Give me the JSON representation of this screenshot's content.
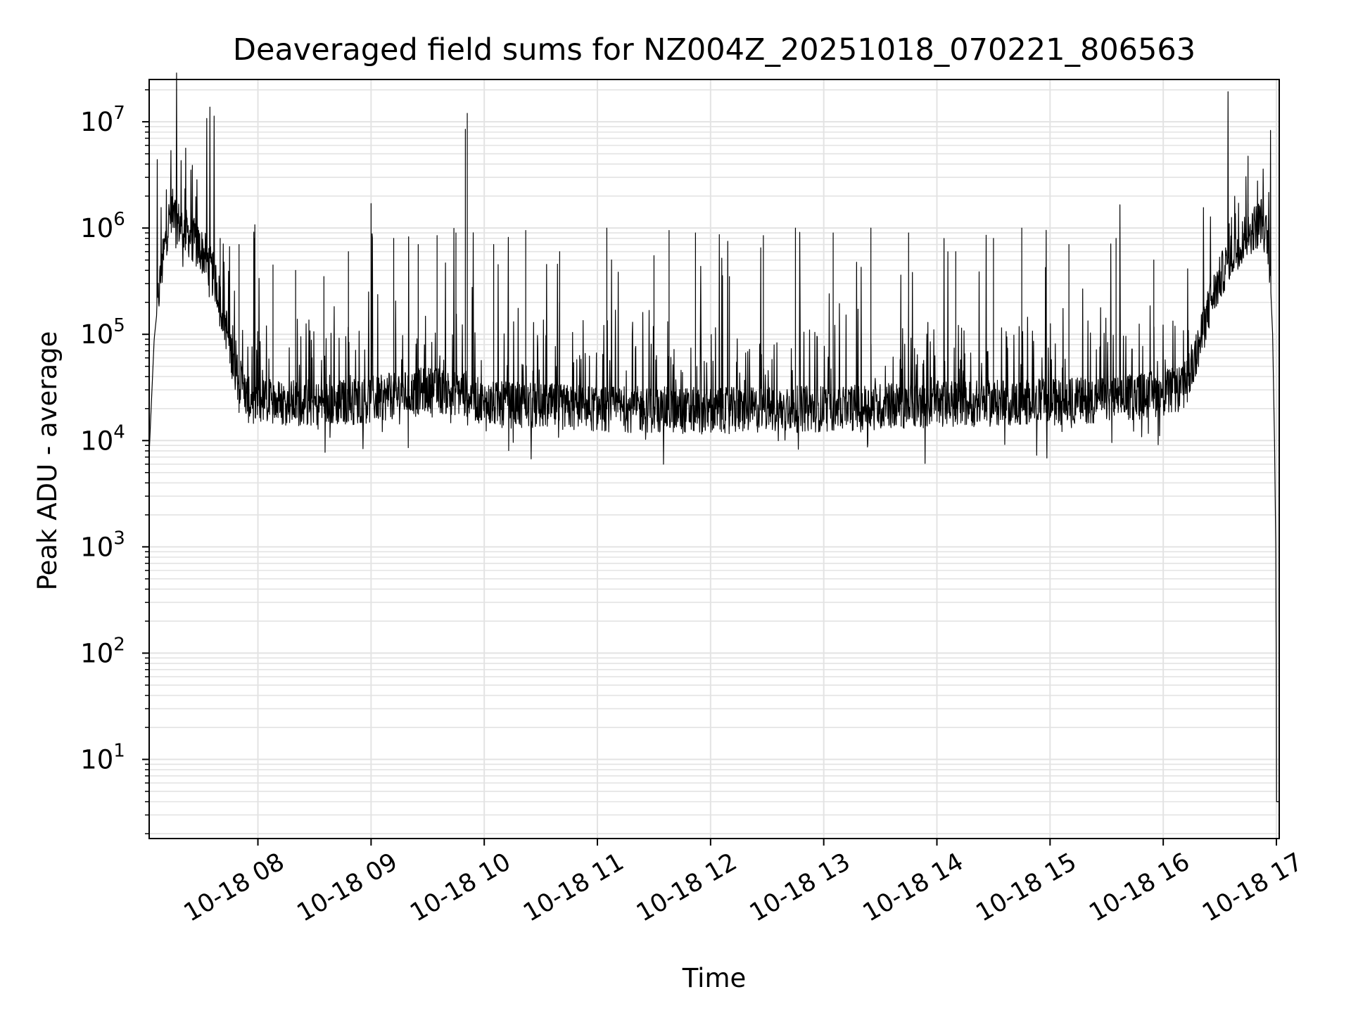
{
  "chart_data": {
    "type": "line",
    "title": "Deaveraged field sums for NZ004Z_20251018_070221_806563",
    "xlabel": "Time",
    "ylabel": "Peak ADU - average",
    "yscale": "log",
    "ylim": [
      1.8,
      25000000
    ],
    "xlim": [
      "2025-10-18T07:02:21",
      "2025-10-18T17:01:30"
    ],
    "grid": true,
    "line_color": "#000000",
    "grid_color": "#e3e3e3",
    "xticks": [
      {
        "t": "2025-10-18T08:00",
        "label": "10-18 08"
      },
      {
        "t": "2025-10-18T09:00",
        "label": "10-18 09"
      },
      {
        "t": "2025-10-18T10:00",
        "label": "10-18 10"
      },
      {
        "t": "2025-10-18T11:00",
        "label": "10-18 11"
      },
      {
        "t": "2025-10-18T12:00",
        "label": "10-18 12"
      },
      {
        "t": "2025-10-18T13:00",
        "label": "10-18 13"
      },
      {
        "t": "2025-10-18T14:00",
        "label": "10-18 14"
      },
      {
        "t": "2025-10-18T15:00",
        "label": "10-18 15"
      },
      {
        "t": "2025-10-18T16:00",
        "label": "10-18 16"
      },
      {
        "t": "2025-10-18T17:00",
        "label": "10-18 17"
      }
    ],
    "yticks": [
      {
        "value": 10,
        "base": "10",
        "exp": "1"
      },
      {
        "value": 100,
        "base": "10",
        "exp": "2"
      },
      {
        "value": 1000,
        "base": "10",
        "exp": "3"
      },
      {
        "value": 10000,
        "base": "10",
        "exp": "4"
      },
      {
        "value": 100000,
        "base": "10",
        "exp": "5"
      },
      {
        "value": 1000000,
        "base": "10",
        "exp": "6"
      },
      {
        "value": 10000000,
        "base": "10",
        "exp": "7"
      }
    ],
    "series": [
      {
        "baseline": [
          [
            "2025-10-18T07:02:21",
            7500
          ],
          [
            "2025-10-18T07:05",
            90000
          ],
          [
            "2025-10-18T07:08",
            300000
          ],
          [
            "2025-10-18T07:12",
            1000000
          ],
          [
            "2025-10-18T07:14",
            1500000
          ],
          [
            "2025-10-18T07:18",
            1100000
          ],
          [
            "2025-10-18T07:25",
            800000
          ],
          [
            "2025-10-18T07:32",
            550000
          ],
          [
            "2025-10-18T07:38",
            300000
          ],
          [
            "2025-10-18T07:43",
            120000
          ],
          [
            "2025-10-18T07:48",
            45000
          ],
          [
            "2025-10-18T07:55",
            24000
          ],
          [
            "2025-10-18T08:30",
            22000
          ],
          [
            "2025-10-18T09:00",
            24000
          ],
          [
            "2025-10-18T09:30",
            30000
          ],
          [
            "2025-10-18T09:50",
            28000
          ],
          [
            "2025-10-18T10:00",
            22000
          ],
          [
            "2025-10-18T11:00",
            20000
          ],
          [
            "2025-10-18T12:00",
            19000
          ],
          [
            "2025-10-18T13:00",
            20000
          ],
          [
            "2025-10-18T14:00",
            22000
          ],
          [
            "2025-10-18T15:00",
            23000
          ],
          [
            "2025-10-18T15:40",
            25000
          ],
          [
            "2025-10-18T16:10",
            30000
          ],
          [
            "2025-10-18T16:15",
            45000
          ],
          [
            "2025-10-18T16:20",
            90000
          ],
          [
            "2025-10-18T16:25",
            200000
          ],
          [
            "2025-10-18T16:32",
            400000
          ],
          [
            "2025-10-18T16:40",
            700000
          ],
          [
            "2025-10-18T16:48",
            1000000
          ],
          [
            "2025-10-18T16:52",
            1200000
          ],
          [
            "2025-10-18T16:56",
            700000
          ],
          [
            "2025-10-18T16:58",
            100000
          ],
          [
            "2025-10-18T16:59",
            10000
          ],
          [
            "2025-10-18T16:59:40",
            1000
          ],
          [
            "2025-10-18T16:59:55",
            60
          ],
          [
            "2025-10-18T17:00:05",
            4
          ],
          [
            "2025-10-18T17:01:30",
            4
          ]
        ],
        "spikes": [
          [
            "2025-10-18T07:10",
            500000
          ],
          [
            "2025-10-18T07:40",
            800000
          ],
          [
            "2025-10-18T07:50",
            700000
          ],
          [
            "2025-10-18T07:58",
            800000
          ],
          [
            "2025-10-18T08:08",
            450000
          ],
          [
            "2025-10-18T08:20",
            400000
          ],
          [
            "2025-10-18T08:35",
            350000
          ],
          [
            "2025-10-18T08:48",
            600000
          ],
          [
            "2025-10-18T09:00",
            1700000
          ],
          [
            "2025-10-18T09:12",
            800000
          ],
          [
            "2025-10-18T09:25",
            700000
          ],
          [
            "2025-10-18T09:35",
            850000
          ],
          [
            "2025-10-18T09:45",
            900000
          ],
          [
            "2025-10-18T09:50",
            8500000
          ],
          [
            "2025-10-18T09:51",
            12000000
          ],
          [
            "2025-10-18T10:05",
            700000
          ],
          [
            "2025-10-18T10:22",
            950000
          ],
          [
            "2025-10-18T10:40",
            600000
          ],
          [
            "2025-10-18T11:05",
            1000000
          ],
          [
            "2025-10-18T11:30",
            550000
          ],
          [
            "2025-10-18T11:38",
            950000
          ],
          [
            "2025-10-18T11:52",
            900000
          ],
          [
            "2025-10-18T12:10",
            350000
          ],
          [
            "2025-10-18T12:28",
            850000
          ],
          [
            "2025-10-18T12:45",
            1000000
          ],
          [
            "2025-10-18T13:05",
            900000
          ],
          [
            "2025-10-18T13:25",
            1000000
          ],
          [
            "2025-10-18T13:45",
            900000
          ],
          [
            "2025-10-18T14:10",
            600000
          ],
          [
            "2025-10-18T14:30",
            800000
          ],
          [
            "2025-10-18T14:45",
            1000000
          ],
          [
            "2025-10-18T15:10",
            700000
          ],
          [
            "2025-10-18T15:35",
            800000
          ],
          [
            "2025-10-18T15:55",
            500000
          ],
          [
            "2025-10-18T16:35",
            1100000
          ],
          [
            "2025-10-18T16:45",
            1700000
          ]
        ]
      }
    ]
  }
}
